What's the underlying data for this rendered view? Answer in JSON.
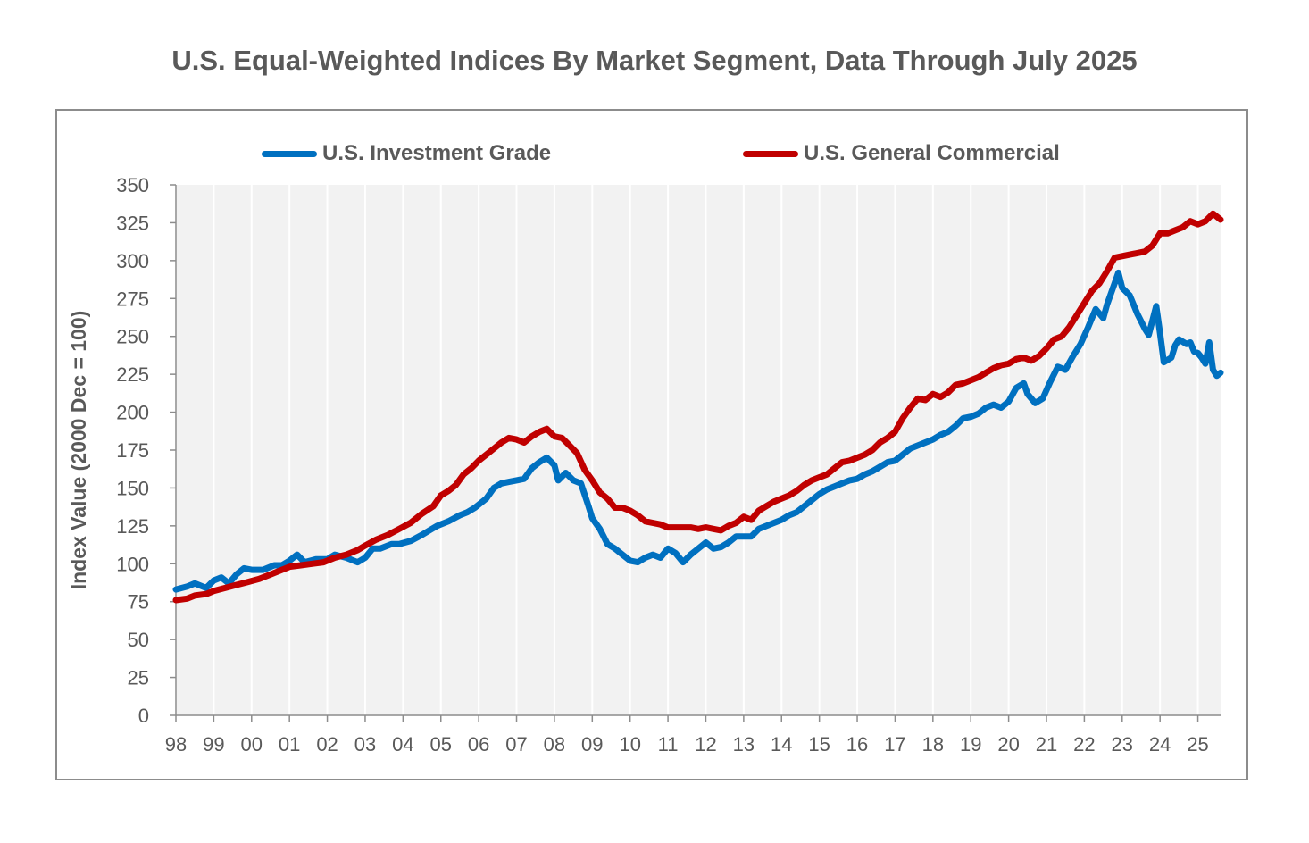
{
  "chart_data": {
    "type": "line",
    "title": "U.S. Equal-Weighted Indices By Market Segment, Data Through July 2025",
    "xlabel": "",
    "ylabel": "Index Value (2000 Dec = 100)",
    "xlim": [
      1998,
      2025.6
    ],
    "ylim": [
      0,
      350
    ],
    "yticks": [
      0,
      25,
      50,
      75,
      100,
      125,
      150,
      175,
      200,
      225,
      250,
      275,
      300,
      325,
      350
    ],
    "xtick_labels": [
      "98",
      "99",
      "00",
      "01",
      "02",
      "03",
      "04",
      "05",
      "06",
      "07",
      "08",
      "09",
      "10",
      "11",
      "12",
      "13",
      "14",
      "15",
      "16",
      "17",
      "18",
      "19",
      "20",
      "21",
      "22",
      "23",
      "24",
      "25"
    ],
    "xtick_values": [
      1998,
      1999,
      2000,
      2001,
      2002,
      2003,
      2004,
      2005,
      2006,
      2007,
      2008,
      2009,
      2010,
      2011,
      2012,
      2013,
      2014,
      2015,
      2016,
      2017,
      2018,
      2019,
      2020,
      2021,
      2022,
      2023,
      2024,
      2025
    ],
    "grid": "vertical",
    "legend_position": "top",
    "series": [
      {
        "name": "U.S. Investment Grade",
        "color": "#0070c0",
        "points": [
          [
            1998.0,
            83
          ],
          [
            1998.3,
            85
          ],
          [
            1998.5,
            87
          ],
          [
            1998.8,
            84
          ],
          [
            1999.0,
            89
          ],
          [
            1999.2,
            91
          ],
          [
            1999.4,
            87
          ],
          [
            1999.6,
            93
          ],
          [
            1999.8,
            97
          ],
          [
            2000.0,
            96
          ],
          [
            2000.3,
            96
          ],
          [
            2000.6,
            99
          ],
          [
            2000.8,
            99
          ],
          [
            2001.0,
            102
          ],
          [
            2001.2,
            106
          ],
          [
            2001.4,
            101
          ],
          [
            2001.7,
            103
          ],
          [
            2002.0,
            103
          ],
          [
            2002.2,
            106
          ],
          [
            2002.5,
            104
          ],
          [
            2002.8,
            101
          ],
          [
            2003.0,
            104
          ],
          [
            2003.2,
            110
          ],
          [
            2003.4,
            110
          ],
          [
            2003.7,
            113
          ],
          [
            2003.9,
            113
          ],
          [
            2004.2,
            115
          ],
          [
            2004.5,
            119
          ],
          [
            2004.7,
            122
          ],
          [
            2004.9,
            125
          ],
          [
            2005.2,
            128
          ],
          [
            2005.5,
            132
          ],
          [
            2005.7,
            134
          ],
          [
            2005.9,
            137
          ],
          [
            2006.2,
            143
          ],
          [
            2006.4,
            150
          ],
          [
            2006.6,
            153
          ],
          [
            2006.8,
            154
          ],
          [
            2007.0,
            155
          ],
          [
            2007.2,
            156
          ],
          [
            2007.4,
            163
          ],
          [
            2007.6,
            167
          ],
          [
            2007.8,
            170
          ],
          [
            2008.0,
            165
          ],
          [
            2008.1,
            155
          ],
          [
            2008.3,
            160
          ],
          [
            2008.5,
            155
          ],
          [
            2008.7,
            153
          ],
          [
            2008.9,
            138
          ],
          [
            2009.0,
            130
          ],
          [
            2009.2,
            123
          ],
          [
            2009.4,
            113
          ],
          [
            2009.6,
            110
          ],
          [
            2009.8,
            106
          ],
          [
            2010.0,
            102
          ],
          [
            2010.2,
            101
          ],
          [
            2010.4,
            104
          ],
          [
            2010.6,
            106
          ],
          [
            2010.8,
            104
          ],
          [
            2011.0,
            110
          ],
          [
            2011.2,
            107
          ],
          [
            2011.4,
            101
          ],
          [
            2011.6,
            106
          ],
          [
            2011.8,
            110
          ],
          [
            2012.0,
            114
          ],
          [
            2012.2,
            110
          ],
          [
            2012.4,
            111
          ],
          [
            2012.6,
            114
          ],
          [
            2012.8,
            118
          ],
          [
            2013.0,
            118
          ],
          [
            2013.2,
            118
          ],
          [
            2013.4,
            123
          ],
          [
            2013.6,
            125
          ],
          [
            2013.8,
            127
          ],
          [
            2014.0,
            129
          ],
          [
            2014.2,
            132
          ],
          [
            2014.4,
            134
          ],
          [
            2014.6,
            138
          ],
          [
            2014.8,
            142
          ],
          [
            2015.0,
            146
          ],
          [
            2015.2,
            149
          ],
          [
            2015.4,
            151
          ],
          [
            2015.6,
            153
          ],
          [
            2015.8,
            155
          ],
          [
            2016.0,
            156
          ],
          [
            2016.2,
            159
          ],
          [
            2016.4,
            161
          ],
          [
            2016.6,
            164
          ],
          [
            2016.8,
            167
          ],
          [
            2017.0,
            168
          ],
          [
            2017.2,
            172
          ],
          [
            2017.4,
            176
          ],
          [
            2017.6,
            178
          ],
          [
            2017.8,
            180
          ],
          [
            2018.0,
            182
          ],
          [
            2018.2,
            185
          ],
          [
            2018.4,
            187
          ],
          [
            2018.6,
            191
          ],
          [
            2018.8,
            196
          ],
          [
            2019.0,
            197
          ],
          [
            2019.2,
            199
          ],
          [
            2019.4,
            203
          ],
          [
            2019.6,
            205
          ],
          [
            2019.8,
            203
          ],
          [
            2020.0,
            207
          ],
          [
            2020.2,
            216
          ],
          [
            2020.4,
            219
          ],
          [
            2020.5,
            212
          ],
          [
            2020.7,
            206
          ],
          [
            2020.9,
            209
          ],
          [
            2021.1,
            220
          ],
          [
            2021.3,
            230
          ],
          [
            2021.5,
            228
          ],
          [
            2021.7,
            237
          ],
          [
            2021.9,
            245
          ],
          [
            2022.1,
            256
          ],
          [
            2022.3,
            268
          ],
          [
            2022.5,
            262
          ],
          [
            2022.6,
            271
          ],
          [
            2022.8,
            285
          ],
          [
            2022.9,
            292
          ],
          [
            2023.0,
            282
          ],
          [
            2023.2,
            277
          ],
          [
            2023.4,
            265
          ],
          [
            2023.6,
            255
          ],
          [
            2023.7,
            251
          ],
          [
            2023.9,
            270
          ],
          [
            2024.0,
            252
          ],
          [
            2024.1,
            233
          ],
          [
            2024.3,
            236
          ],
          [
            2024.4,
            244
          ],
          [
            2024.5,
            248
          ],
          [
            2024.7,
            245
          ],
          [
            2024.8,
            246
          ],
          [
            2024.9,
            240
          ],
          [
            2025.0,
            239
          ],
          [
            2025.1,
            236
          ],
          [
            2025.2,
            232
          ],
          [
            2025.3,
            246
          ],
          [
            2025.4,
            228
          ],
          [
            2025.5,
            224
          ],
          [
            2025.6,
            226
          ]
        ]
      },
      {
        "name": "U.S. General Commercial",
        "color": "#c00000",
        "points": [
          [
            1998.0,
            76
          ],
          [
            1998.3,
            77
          ],
          [
            1998.5,
            79
          ],
          [
            1998.8,
            80
          ],
          [
            1999.0,
            82
          ],
          [
            1999.3,
            84
          ],
          [
            1999.6,
            86
          ],
          [
            1999.9,
            88
          ],
          [
            2000.2,
            90
          ],
          [
            2000.5,
            93
          ],
          [
            2000.8,
            96
          ],
          [
            2001.0,
            98
          ],
          [
            2001.3,
            99
          ],
          [
            2001.6,
            100
          ],
          [
            2001.9,
            101
          ],
          [
            2002.2,
            104
          ],
          [
            2002.5,
            106
          ],
          [
            2002.8,
            109
          ],
          [
            2003.0,
            112
          ],
          [
            2003.3,
            116
          ],
          [
            2003.6,
            119
          ],
          [
            2003.9,
            123
          ],
          [
            2004.2,
            127
          ],
          [
            2004.5,
            133
          ],
          [
            2004.8,
            138
          ],
          [
            2005.0,
            145
          ],
          [
            2005.2,
            148
          ],
          [
            2005.4,
            152
          ],
          [
            2005.6,
            159
          ],
          [
            2005.8,
            163
          ],
          [
            2006.0,
            168
          ],
          [
            2006.2,
            172
          ],
          [
            2006.4,
            176
          ],
          [
            2006.6,
            180
          ],
          [
            2006.8,
            183
          ],
          [
            2007.0,
            182
          ],
          [
            2007.2,
            180
          ],
          [
            2007.4,
            184
          ],
          [
            2007.6,
            187
          ],
          [
            2007.8,
            189
          ],
          [
            2008.0,
            184
          ],
          [
            2008.2,
            183
          ],
          [
            2008.4,
            178
          ],
          [
            2008.6,
            173
          ],
          [
            2008.8,
            162
          ],
          [
            2009.0,
            155
          ],
          [
            2009.2,
            147
          ],
          [
            2009.4,
            143
          ],
          [
            2009.6,
            137
          ],
          [
            2009.8,
            137
          ],
          [
            2010.0,
            135
          ],
          [
            2010.2,
            132
          ],
          [
            2010.4,
            128
          ],
          [
            2010.6,
            127
          ],
          [
            2010.8,
            126
          ],
          [
            2011.0,
            124
          ],
          [
            2011.2,
            124
          ],
          [
            2011.4,
            124
          ],
          [
            2011.6,
            124
          ],
          [
            2011.8,
            123
          ],
          [
            2012.0,
            124
          ],
          [
            2012.2,
            123
          ],
          [
            2012.4,
            122
          ],
          [
            2012.6,
            125
          ],
          [
            2012.8,
            127
          ],
          [
            2013.0,
            131
          ],
          [
            2013.2,
            129
          ],
          [
            2013.4,
            135
          ],
          [
            2013.6,
            138
          ],
          [
            2013.8,
            141
          ],
          [
            2014.0,
            143
          ],
          [
            2014.2,
            145
          ],
          [
            2014.4,
            148
          ],
          [
            2014.6,
            152
          ],
          [
            2014.8,
            155
          ],
          [
            2015.0,
            157
          ],
          [
            2015.2,
            159
          ],
          [
            2015.4,
            163
          ],
          [
            2015.6,
            167
          ],
          [
            2015.8,
            168
          ],
          [
            2016.0,
            170
          ],
          [
            2016.2,
            172
          ],
          [
            2016.4,
            175
          ],
          [
            2016.6,
            180
          ],
          [
            2016.8,
            183
          ],
          [
            2017.0,
            187
          ],
          [
            2017.2,
            196
          ],
          [
            2017.4,
            203
          ],
          [
            2017.6,
            209
          ],
          [
            2017.8,
            208
          ],
          [
            2018.0,
            212
          ],
          [
            2018.2,
            210
          ],
          [
            2018.4,
            213
          ],
          [
            2018.6,
            218
          ],
          [
            2018.8,
            219
          ],
          [
            2019.0,
            221
          ],
          [
            2019.2,
            223
          ],
          [
            2019.4,
            226
          ],
          [
            2019.6,
            229
          ],
          [
            2019.8,
            231
          ],
          [
            2020.0,
            232
          ],
          [
            2020.2,
            235
          ],
          [
            2020.4,
            236
          ],
          [
            2020.6,
            234
          ],
          [
            2020.8,
            237
          ],
          [
            2021.0,
            242
          ],
          [
            2021.2,
            248
          ],
          [
            2021.4,
            250
          ],
          [
            2021.6,
            256
          ],
          [
            2021.8,
            264
          ],
          [
            2022.0,
            272
          ],
          [
            2022.2,
            280
          ],
          [
            2022.4,
            285
          ],
          [
            2022.6,
            293
          ],
          [
            2022.8,
            302
          ],
          [
            2023.0,
            303
          ],
          [
            2023.2,
            304
          ],
          [
            2023.4,
            305
          ],
          [
            2023.6,
            306
          ],
          [
            2023.8,
            310
          ],
          [
            2024.0,
            318
          ],
          [
            2024.2,
            318
          ],
          [
            2024.4,
            320
          ],
          [
            2024.6,
            322
          ],
          [
            2024.8,
            326
          ],
          [
            2025.0,
            324
          ],
          [
            2025.2,
            326
          ],
          [
            2025.4,
            331
          ],
          [
            2025.6,
            327
          ]
        ]
      }
    ]
  }
}
